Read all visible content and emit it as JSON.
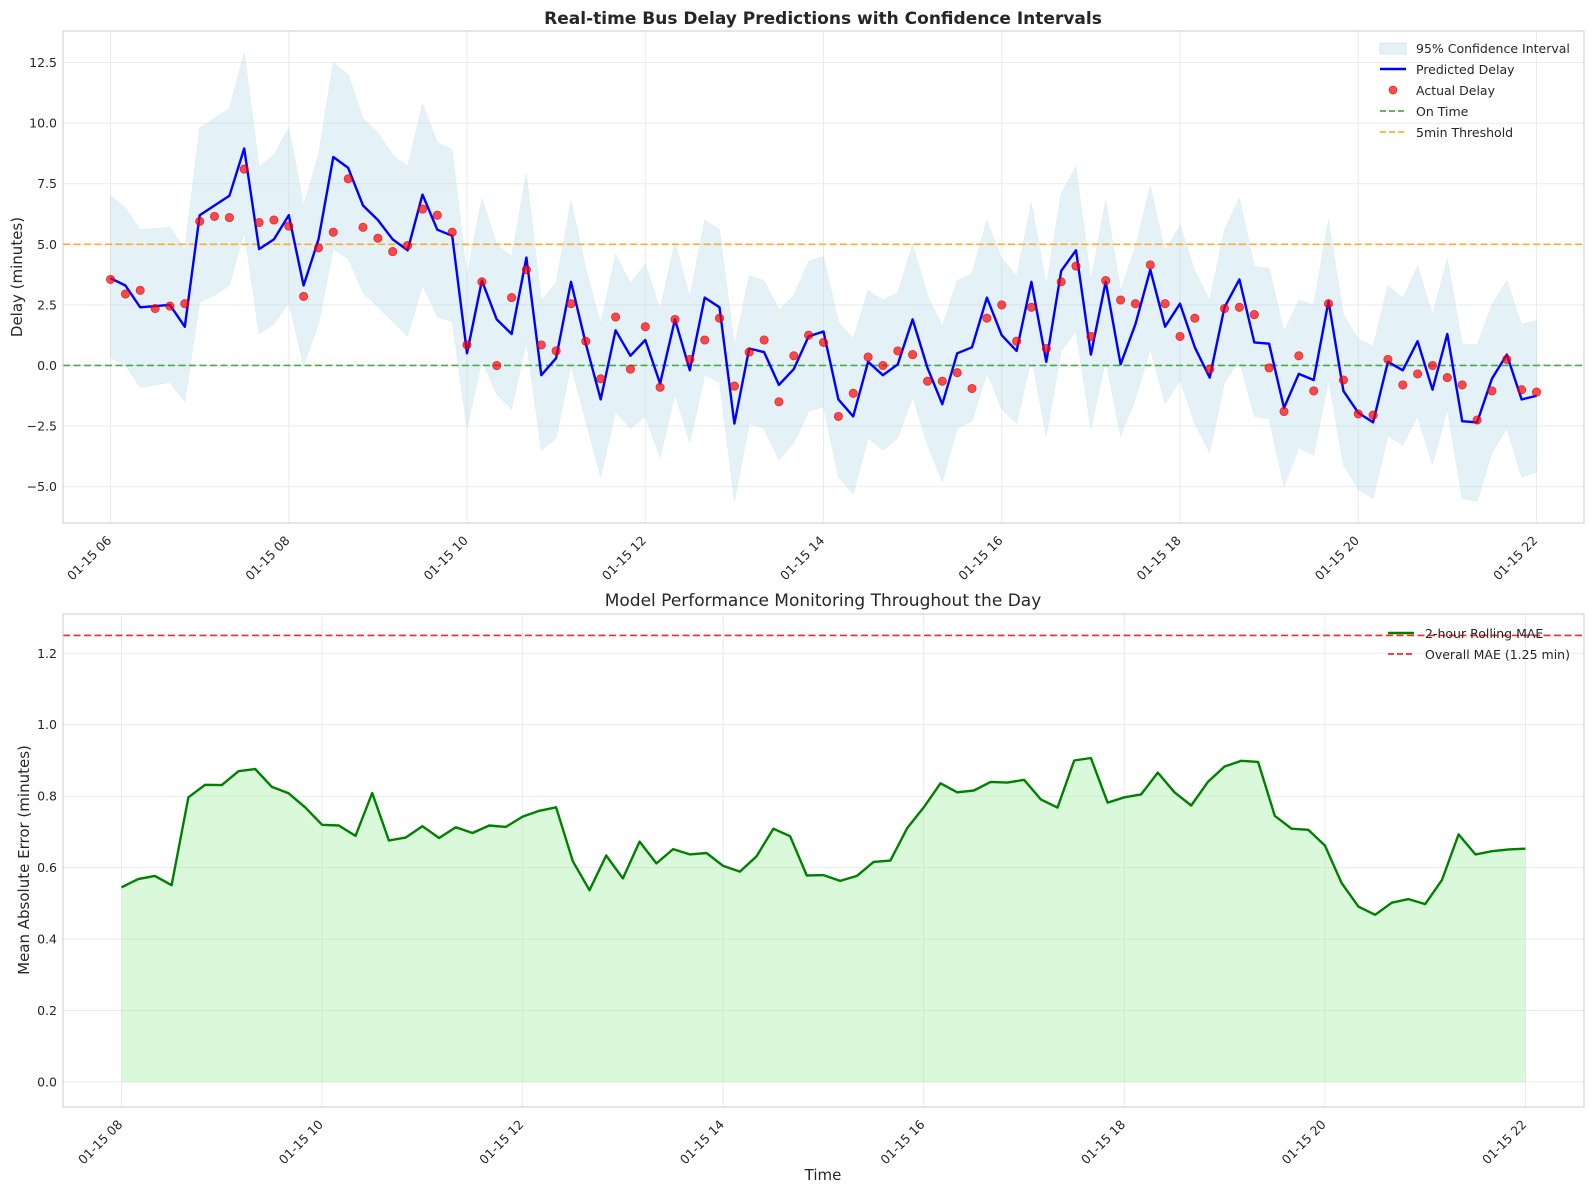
{
  "chart_data": [
    {
      "type": "line",
      "title": "Real-time Bus Delay Predictions with Confidence Intervals",
      "ylabel": "Delay (minutes)",
      "xlabel": "",
      "xlim": [
        "01-15 05:28",
        "01-15 22:32"
      ],
      "ylim": [
        -6.5,
        13.8
      ],
      "x_ticks": [
        "01-15 06",
        "01-15 08",
        "01-15 10",
        "01-15 12",
        "01-15 14",
        "01-15 16",
        "01-15 18",
        "01-15 20",
        "01-15 22"
      ],
      "x_tick_hours": [
        6,
        8,
        10,
        12,
        14,
        16,
        18,
        20,
        22
      ],
      "y_ticks": [
        -5.0,
        -2.5,
        0.0,
        2.5,
        5.0,
        7.5,
        10.0,
        12.5
      ],
      "grid": true,
      "legend_position": "top-right",
      "x_start_time": "01-15 06:00",
      "x_step_minutes": 10,
      "series": [
        {
          "name": "Predicted Delay",
          "color": "#0000ff",
          "values": [
            3.6,
            3.3,
            2.4,
            2.45,
            2.5,
            1.6,
            6.2,
            6.6,
            7.0,
            8.95,
            4.8,
            5.2,
            6.2,
            3.3,
            5.2,
            8.6,
            8.15,
            6.6,
            6.0,
            5.2,
            4.75,
            7.05,
            5.6,
            5.35,
            0.5,
            3.5,
            1.9,
            1.3,
            4.45,
            -0.4,
            0.3,
            3.45,
            0.9,
            -1.4,
            1.45,
            0.4,
            1.05,
            -0.75,
            1.9,
            -0.2,
            2.8,
            2.4,
            -2.4,
            0.7,
            0.55,
            -0.8,
            -0.15,
            1.2,
            1.4,
            -1.4,
            -2.1,
            0.15,
            -0.4,
            0.05,
            1.9,
            -0.1,
            -1.6,
            0.5,
            0.75,
            2.8,
            1.25,
            0.6,
            3.45,
            0.15,
            3.9,
            4.75,
            0.45,
            3.45,
            0.05,
            1.7,
            3.95,
            1.6,
            2.55,
            0.75,
            -0.5,
            2.4,
            3.55,
            0.95,
            0.9,
            -1.75,
            -0.35,
            -0.6,
            2.65,
            -1.05,
            -1.95,
            -2.35,
            0.15,
            -0.2,
            1.0,
            -1.0,
            1.3,
            -2.3,
            -2.35,
            -0.55,
            0.45,
            -1.4,
            -1.25
          ]
        },
        {
          "name": "Actual Delay",
          "color": "#ff0000",
          "values": [
            3.55,
            2.95,
            3.1,
            2.35,
            2.45,
            2.55,
            5.95,
            6.15,
            6.1,
            8.1,
            5.9,
            6.0,
            5.75,
            2.85,
            4.85,
            5.5,
            7.7,
            5.7,
            5.25,
            4.7,
            4.95,
            6.45,
            6.2,
            5.5,
            0.85,
            3.45,
            0.0,
            2.8,
            3.95,
            0.85,
            0.6,
            2.55,
            1.0,
            -0.55,
            2.0,
            -0.15,
            1.6,
            -0.9,
            1.9,
            0.25,
            1.05,
            1.95,
            -0.85,
            0.55,
            1.05,
            -1.5,
            0.4,
            1.25,
            0.95,
            -2.1,
            -1.15,
            0.35,
            0.0,
            0.6,
            0.45,
            -0.65,
            -0.65,
            -0.3,
            -0.95,
            1.95,
            2.5,
            1.0,
            2.4,
            0.7,
            3.45,
            4.1,
            1.2,
            3.5,
            2.7,
            2.55,
            4.15,
            2.55,
            1.2,
            1.95,
            -0.15,
            2.35,
            2.4,
            2.1,
            -0.1,
            -1.9,
            0.4,
            -1.05,
            2.55,
            -0.6,
            -2.0,
            -2.05,
            0.25,
            -0.8,
            -0.35,
            0.0,
            -0.5,
            -0.8,
            -2.25,
            -1.05,
            0.25,
            -1.0,
            -1.1
          ]
        },
        {
          "name": "95% Confidence Interval",
          "color": "#add8e6",
          "lower": [
            0.3,
            0.0,
            -0.9,
            -0.8,
            -0.7,
            -1.5,
            2.6,
            2.9,
            3.3,
            5.5,
            1.3,
            1.7,
            2.6,
            0.0,
            1.7,
            4.8,
            4.4,
            3.0,
            2.4,
            1.8,
            1.2,
            3.3,
            2.0,
            1.8,
            -2.6,
            0.2,
            -1.2,
            -1.8,
            1.0,
            -3.5,
            -3.0,
            0.0,
            -2.3,
            -4.6,
            -1.9,
            -2.6,
            -2.1,
            -3.8,
            -1.2,
            -3.2,
            -0.4,
            -0.7,
            -5.6,
            -2.4,
            -2.6,
            -3.9,
            -3.2,
            -1.9,
            -1.7,
            -4.6,
            -5.3,
            -3.0,
            -3.5,
            -3.0,
            -1.3,
            -3.3,
            -4.8,
            -2.6,
            -2.3,
            -0.3,
            -1.8,
            -2.4,
            0.3,
            -2.9,
            0.6,
            1.4,
            -2.6,
            0.2,
            -2.9,
            -1.4,
            0.7,
            -1.6,
            -0.6,
            -2.4,
            -3.6,
            -0.7,
            0.2,
            -2.1,
            -2.2,
            -5.0,
            -3.4,
            -3.7,
            -0.6,
            -4.1,
            -5.1,
            -5.5,
            -2.9,
            -3.3,
            -2.1,
            -4.1,
            -1.8,
            -5.5,
            -5.6,
            -3.6,
            -2.6,
            -4.6,
            -4.4
          ],
          "upper": [
            7.0,
            6.5,
            5.6,
            5.65,
            5.7,
            4.8,
            9.8,
            10.2,
            10.6,
            12.9,
            8.2,
            8.7,
            9.8,
            6.6,
            8.7,
            12.5,
            12.0,
            10.2,
            9.6,
            8.7,
            8.2,
            10.8,
            9.2,
            8.9,
            3.7,
            6.9,
            5.0,
            4.5,
            7.9,
            2.7,
            3.4,
            6.8,
            4.0,
            1.7,
            4.6,
            3.4,
            4.2,
            2.3,
            5.1,
            2.8,
            6.0,
            5.6,
            0.8,
            3.7,
            3.5,
            2.3,
            2.9,
            4.3,
            4.5,
            1.8,
            1.1,
            3.1,
            2.7,
            3.0,
            5.0,
            2.9,
            1.6,
            3.5,
            3.8,
            6.0,
            4.4,
            3.7,
            6.7,
            3.3,
            7.1,
            8.2,
            3.5,
            6.8,
            3.1,
            4.9,
            7.4,
            4.7,
            5.8,
            3.9,
            2.7,
            5.6,
            6.9,
            4.1,
            4.0,
            1.4,
            2.7,
            2.5,
            6.0,
            2.1,
            1.1,
            0.8,
            3.3,
            2.8,
            4.1,
            2.1,
            4.4,
            0.9,
            0.85,
            2.5,
            3.5,
            1.7,
            1.85
          ]
        }
      ],
      "reference_lines": [
        {
          "name": "On Time",
          "y": 0,
          "color": "#2ca02c"
        },
        {
          "name": "5min Threshold",
          "y": 5,
          "color": "#ffa500"
        }
      ],
      "legend": [
        "95% Confidence Interval",
        "Predicted Delay",
        "Actual Delay",
        "On Time",
        "5min Threshold"
      ]
    },
    {
      "type": "area",
      "title": "Model Performance Monitoring Throughout the Day",
      "xlabel": "Time",
      "ylabel": "Mean Absolute Error (minutes)",
      "xlim": [
        "01-15 07:25",
        "01-15 22:35"
      ],
      "ylim": [
        -0.07,
        1.31
      ],
      "x_ticks": [
        "01-15 08",
        "01-15 10",
        "01-15 12",
        "01-15 14",
        "01-15 16",
        "01-15 18",
        "01-15 20",
        "01-15 22"
      ],
      "x_tick_hours": [
        8,
        10,
        12,
        14,
        16,
        18,
        20,
        22
      ],
      "y_ticks": [
        0.0,
        0.2,
        0.4,
        0.6,
        0.8,
        1.0,
        1.2
      ],
      "grid": true,
      "legend_position": "top-right",
      "x_start_time": "01-15 08:00",
      "x_step_minutes": 10,
      "series": [
        {
          "name": "2-hour Rolling MAE",
          "color": "#008000",
          "fill": "#90ee90",
          "values": [
            0.545,
            0.568,
            0.577,
            0.551,
            0.797,
            0.832,
            0.831,
            0.87,
            0.876,
            0.826,
            0.808,
            0.768,
            0.72,
            0.718,
            0.689,
            0.809,
            0.676,
            0.684,
            0.716,
            0.683,
            0.713,
            0.697,
            0.718,
            0.714,
            0.743,
            0.759,
            0.769,
            0.618,
            0.537,
            0.634,
            0.57,
            0.673,
            0.612,
            0.652,
            0.637,
            0.641,
            0.605,
            0.589,
            0.632,
            0.709,
            0.688,
            0.578,
            0.579,
            0.563,
            0.577,
            0.616,
            0.62,
            0.71,
            0.769,
            0.836,
            0.811,
            0.816,
            0.84,
            0.838,
            0.846,
            0.791,
            0.768,
            0.9,
            0.907,
            0.782,
            0.797,
            0.805,
            0.866,
            0.811,
            0.774,
            0.84,
            0.883,
            0.899,
            0.896,
            0.745,
            0.709,
            0.706,
            0.662,
            0.557,
            0.491,
            0.468,
            0.502,
            0.512,
            0.498,
            0.565,
            0.693,
            0.637,
            0.646,
            0.651,
            0.653
          ]
        }
      ],
      "reference_lines": [
        {
          "name": "Overall MAE (1.25 min)",
          "y": 1.25,
          "color": "#ff0000"
        }
      ],
      "legend": [
        "2-hour Rolling MAE",
        "Overall MAE (1.25 min)"
      ]
    }
  ]
}
